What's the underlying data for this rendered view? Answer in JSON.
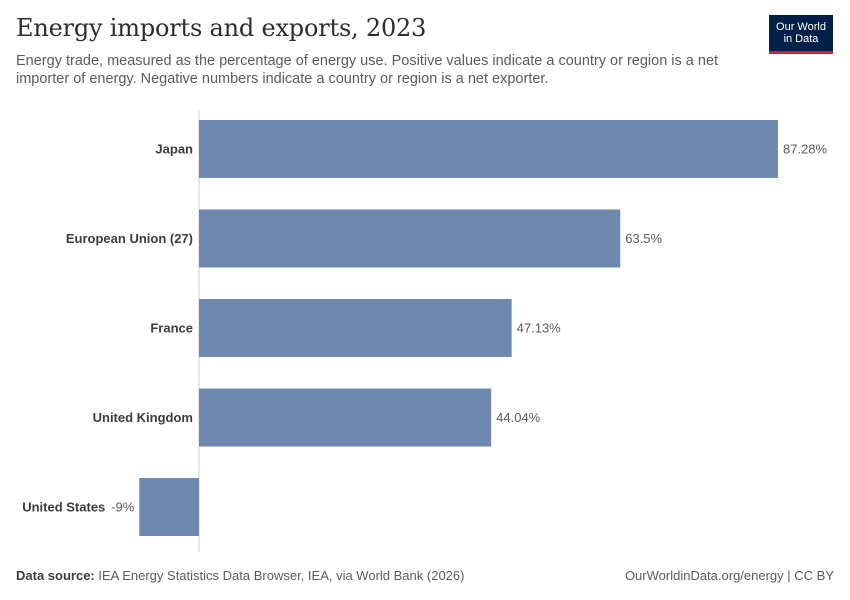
{
  "header": {
    "title": "Energy imports and exports, 2023",
    "subtitle": "Energy trade, measured as the percentage of energy use. Positive values indicate a country or region is a net importer of energy. Negative numbers indicate a country or region is a net exporter."
  },
  "logo": {
    "line1": "Our World",
    "line2": "in Data"
  },
  "footer": {
    "source_label": "Data source:",
    "source_text": "IEA Energy Statistics Data Browser, IEA, via World Bank (2026)",
    "credit": "OurWorldinData.org/energy | CC BY"
  },
  "colors": {
    "bar": "#6f88b0",
    "axis": "#cccccc",
    "logo_bg": "#002147",
    "logo_accent": "#ce261e"
  },
  "chart_data": {
    "type": "bar",
    "orientation": "horizontal",
    "categories": [
      "Japan",
      "European Union (27)",
      "France",
      "United Kingdom",
      "United States"
    ],
    "values": [
      87.28,
      63.5,
      47.13,
      44.04,
      -9
    ],
    "value_labels": [
      "87.28%",
      "63.5%",
      "47.13%",
      "44.04%",
      "-9%"
    ],
    "unit": "%",
    "xlim": [
      -9,
      87.28
    ],
    "grid": false,
    "legend": "none"
  }
}
